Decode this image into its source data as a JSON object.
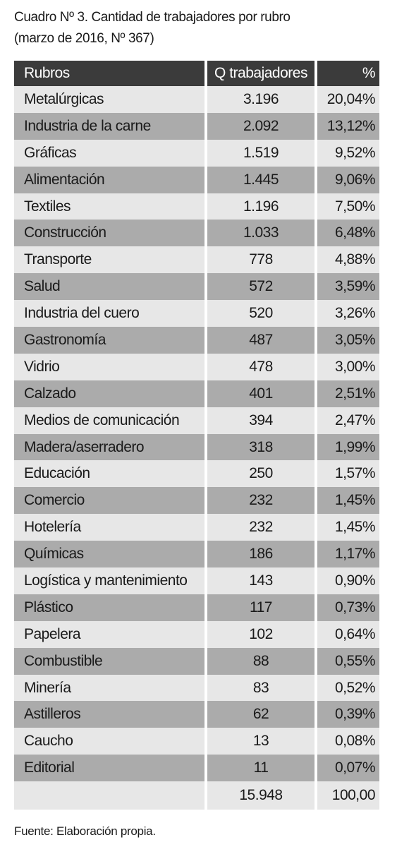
{
  "title": [
    "Cuadro Nº 3. Cantidad de trabajadores por rubro",
    "(marzo de 2016, Nº 367)"
  ],
  "table": {
    "header": [
      "Rubros",
      "Q trabajadores",
      "%"
    ],
    "rows": [
      [
        "Metalúrgicas",
        "3.196",
        "20,04%"
      ],
      [
        "Industria de la carne",
        "2.092",
        "13,12%"
      ],
      [
        "Gráficas",
        "1.519",
        "9,52%"
      ],
      [
        "Alimentación",
        "1.445",
        "9,06%"
      ],
      [
        "Textiles",
        "1.196",
        "7,50%"
      ],
      [
        "Construcción",
        "1.033",
        "6,48%"
      ],
      [
        "Transporte",
        "778",
        "4,88%"
      ],
      [
        "Salud",
        "572",
        "3,59%"
      ],
      [
        "Industria del cuero",
        "520",
        "3,26%"
      ],
      [
        "Gastronomía",
        "487",
        "3,05%"
      ],
      [
        "Vidrio",
        "478",
        "3,00%"
      ],
      [
        "Calzado",
        "401",
        "2,51%"
      ],
      [
        "Medios de comunicación",
        "394",
        "2,47%"
      ],
      [
        "Madera/aserradero",
        "318",
        "1,99%"
      ],
      [
        "Educación",
        "250",
        "1,57%"
      ],
      [
        "Comercio",
        "232",
        "1,45%"
      ],
      [
        "Hotelería",
        "232",
        "1,45%"
      ],
      [
        "Químicas",
        "186",
        "1,17%"
      ],
      [
        "Logística y mantenimiento",
        "143",
        "0,90%"
      ],
      [
        "Plástico",
        "117",
        "0,73%"
      ],
      [
        "Papelera",
        "102",
        "0,64%"
      ],
      [
        "Combustible",
        "88",
        "0,55%"
      ],
      [
        "Minería",
        "83",
        "0,52%"
      ],
      [
        "Astilleros",
        "62",
        "0,39%"
      ],
      [
        "Caucho",
        "13",
        "0,08%"
      ],
      [
        "Editorial",
        "11",
        "0,07%"
      ]
    ],
    "total": [
      "15.948",
      "100,00"
    ]
  },
  "footer": "Fuente: Elaboración propia."
}
